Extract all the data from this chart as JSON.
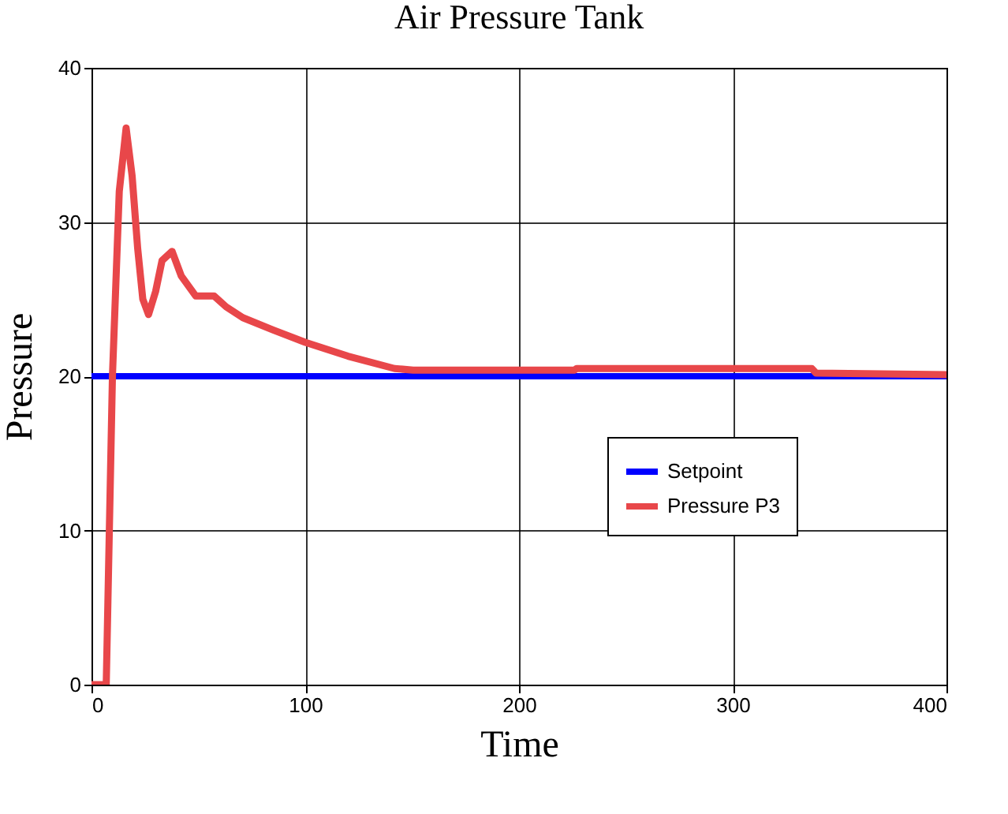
{
  "chart_data": {
    "type": "line",
    "title": "Air Pressure Tank",
    "xlabel": "Time",
    "ylabel": "Pressure",
    "xlim": [
      0,
      400
    ],
    "ylim": [
      0,
      40
    ],
    "xticks": [
      0,
      100,
      200,
      300,
      400
    ],
    "yticks": [
      0,
      10,
      20,
      30,
      40
    ],
    "grid": true,
    "legend": "bottom right",
    "line_style": "solid",
    "marker": "none",
    "series": [
      {
        "name": "Setpoint",
        "color": "#0000ff",
        "x": [
          0,
          400
        ],
        "values": [
          20,
          20
        ]
      },
      {
        "name": "Pressure P3",
        "color": "#e8474a",
        "x": [
          0,
          6.9,
          9.8,
          13,
          16.2,
          19,
          21.6,
          24,
          26.7,
          30,
          33,
          37.7,
          42,
          48.8,
          57.4,
          63,
          70.8,
          85,
          100,
          120,
          141.8,
          150.5,
          190,
          226,
          227,
          280,
          337,
          339,
          370,
          400
        ],
        "values": [
          0,
          0,
          20,
          32,
          36.1,
          33,
          28.3,
          25,
          24,
          25.5,
          27.5,
          28.1,
          26.5,
          25.2,
          25.2,
          24.5,
          23.8,
          23,
          22.2,
          21.3,
          20.5,
          20.4,
          20.4,
          20.4,
          20.5,
          20.5,
          20.5,
          20.2,
          20.15,
          20.1
        ]
      }
    ]
  }
}
